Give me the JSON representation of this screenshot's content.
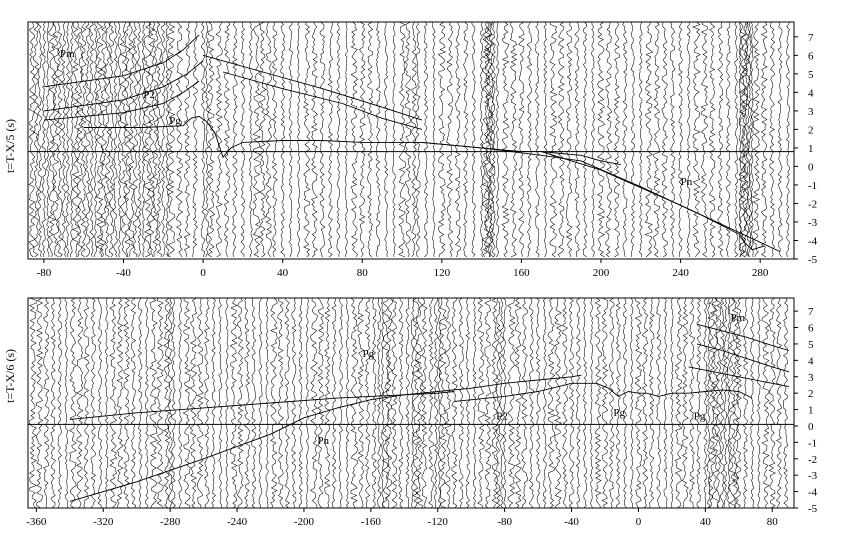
{
  "chart_data": [
    {
      "type": "line",
      "panel": "upper",
      "ylabel": "t=T-X/5 (s)",
      "xlim": [
        -88,
        297
      ],
      "ylim": [
        -5,
        7.8
      ],
      "xticks": [
        -80,
        -40,
        0,
        40,
        80,
        120,
        160,
        200,
        240,
        280
      ],
      "xtick_labels": [
        "-80",
        "-40",
        "0",
        "40",
        "80",
        "120",
        "160",
        "200",
        "240",
        "280"
      ],
      "yticks": [
        -5,
        -4,
        -3,
        -2,
        -1,
        0,
        1,
        2,
        3,
        4,
        5,
        6,
        7
      ],
      "ytick_labels": [
        "-5",
        "-4",
        "-3",
        "-2",
        "-1",
        "0",
        "1",
        "2",
        "3",
        "4",
        "5",
        "6",
        "7"
      ],
      "reference_line_y": 0.8,
      "trace_x": [
        -86,
        -84,
        -82,
        -80,
        -78,
        -76,
        -74,
        -72,
        -70,
        -68,
        -66,
        -64,
        -62,
        -60,
        -58,
        -56,
        -54,
        -52,
        -50,
        -48,
        -46,
        -44,
        -42,
        -40,
        -38,
        -36,
        -34,
        -32,
        -30,
        -28,
        -26,
        -24,
        -22,
        -20,
        -18,
        -16,
        -12,
        -8,
        -4,
        0,
        2,
        4,
        8,
        12,
        16,
        20,
        24,
        27,
        30,
        33,
        36,
        40,
        44,
        48,
        52,
        56,
        60,
        64,
        68,
        72,
        76,
        80,
        84,
        88,
        92,
        96,
        100,
        103,
        106,
        108,
        112,
        116,
        120,
        124,
        128,
        132,
        136,
        140,
        142,
        143,
        144,
        145,
        146,
        148,
        152,
        156,
        160,
        164,
        168,
        172,
        176,
        180,
        184,
        188,
        192,
        196,
        200,
        204,
        208,
        212,
        216,
        220,
        224,
        228,
        232,
        236,
        240,
        244,
        248,
        252,
        256,
        260,
        264,
        268,
        270,
        271,
        272,
        273,
        274,
        275,
        276,
        278,
        282,
        286,
        290,
        294
      ],
      "phase_labels": [
        {
          "text": "Pm",
          "x": -72,
          "y": 5.9
        },
        {
          "text": "P2",
          "x": -30,
          "y": 3.7
        },
        {
          "text": "Pg",
          "x": -17,
          "y": 2.3
        },
        {
          "text": "Pn",
          "x": 240,
          "y": -1.0
        }
      ],
      "series": [
        {
          "name": "Pm",
          "x": [
            -80,
            -40,
            -20,
            -10,
            -2
          ],
          "y": [
            4.3,
            4.9,
            5.6,
            6.3,
            7.1
          ]
        },
        {
          "name": "",
          "x": [
            -80,
            -40,
            -20,
            -8,
            0
          ],
          "y": [
            3.0,
            3.6,
            4.3,
            5.0,
            5.7
          ]
        },
        {
          "name": "P2",
          "x": [
            -80,
            -40,
            -20,
            -10,
            -2
          ],
          "y": [
            2.5,
            2.9,
            3.4,
            4.0,
            4.6
          ]
        },
        {
          "name": "",
          "x": [
            0,
            30,
            60,
            90,
            110
          ],
          "y": [
            6.0,
            5.1,
            4.2,
            3.2,
            2.5
          ]
        },
        {
          "name": "",
          "x": [
            10,
            40,
            70,
            90,
            110
          ],
          "y": [
            5.1,
            4.2,
            3.4,
            2.6,
            2.0
          ]
        },
        {
          "name": "Pg",
          "x": [
            -60,
            -30,
            -10,
            -6,
            -2,
            2,
            6,
            10,
            14,
            20,
            40,
            60,
            80,
            100,
            110,
            130,
            150,
            160,
            170,
            180,
            190,
            200,
            210
          ],
          "y": [
            2.1,
            2.1,
            2.2,
            2.6,
            2.7,
            2.4,
            1.8,
            0.5,
            1.0,
            1.3,
            1.4,
            1.4,
            1.3,
            1.3,
            1.3,
            1.1,
            0.9,
            0.8,
            0.8,
            0.7,
            0.6,
            0.3,
            0.1
          ]
        },
        {
          "name": "Pn",
          "x": [
            110,
            140,
            170,
            190,
            220,
            250,
            270,
            272,
            276,
            282
          ],
          "y": [
            1.3,
            1.0,
            0.6,
            0.3,
            -1.1,
            -2.6,
            -3.7,
            -4.1,
            -4.5,
            -4.3
          ]
        },
        {
          "name": "",
          "x": [
            170,
            200,
            240,
            280,
            290
          ],
          "y": [
            0.8,
            -0.2,
            -2.1,
            -4.1,
            -4.6
          ]
        }
      ]
    },
    {
      "type": "line",
      "panel": "lower",
      "ylabel": "t=T-X/6 (s)",
      "xlim": [
        -365,
        93
      ],
      "ylim": [
        -5,
        7.8
      ],
      "xticks": [
        -360,
        -320,
        -280,
        -240,
        -200,
        -160,
        -120,
        -80,
        -40,
        0,
        40,
        80
      ],
      "xtick_labels": [
        "-360",
        "-320",
        "-280",
        "-240",
        "-200",
        "-160",
        "-120",
        "-80",
        "-40",
        "0",
        "40",
        "80"
      ],
      "yticks": [
        -5,
        -4,
        -3,
        -2,
        -1,
        0,
        1,
        2,
        3,
        4,
        5,
        6,
        7
      ],
      "ytick_labels": [
        "-5",
        "-4",
        "-3",
        "-2",
        "-1",
        "0",
        "1",
        "2",
        "3",
        "4",
        "5",
        "6",
        "7"
      ],
      "reference_line_y": 0.1,
      "trace_x": [
        -362,
        -358,
        -354,
        -350,
        -346,
        -342,
        -338,
        -334,
        -330,
        -326,
        -322,
        -318,
        -314,
        -310,
        -306,
        -302,
        -298,
        -294,
        -290,
        -286,
        -282,
        -280,
        -278,
        -274,
        -270,
        -266,
        -262,
        -258,
        -254,
        -250,
        -246,
        -242,
        -238,
        -234,
        -230,
        -226,
        -222,
        -218,
        -214,
        -210,
        -206,
        -202,
        -198,
        -194,
        -190,
        -186,
        -182,
        -178,
        -174,
        -170,
        -166,
        -162,
        -158,
        -155,
        -153,
        -151,
        -149,
        -146,
        -142,
        -138,
        -135,
        -133,
        -131,
        -128,
        -124,
        -121,
        -119,
        -117,
        -114,
        -110,
        -106,
        -102,
        -98,
        -94,
        -90,
        -86,
        -84,
        -82,
        -80,
        -76,
        -72,
        -68,
        -64,
        -60,
        -56,
        -52,
        -48,
        -44,
        -40,
        -36,
        -32,
        -28,
        -24,
        -20,
        -16,
        -12,
        -8,
        -4,
        0,
        4,
        8,
        12,
        16,
        20,
        24,
        28,
        32,
        36,
        40,
        42,
        44,
        46,
        48,
        50,
        52,
        54,
        56,
        58,
        60,
        64,
        68,
        72,
        76,
        80,
        84,
        88
      ],
      "phase_labels": [
        {
          "text": "Pm",
          "x": 55,
          "y": 6.4
        },
        {
          "text": "Pg",
          "x": -165,
          "y": 4.2
        },
        {
          "text": "P2",
          "x": -85,
          "y": 0.4
        },
        {
          "text": "Pg",
          "x": -15,
          "y": 0.6
        },
        {
          "text": "Pg",
          "x": 33,
          "y": 0.4
        },
        {
          "text": "Pn",
          "x": -192,
          "y": -1.1
        }
      ],
      "series": [
        {
          "name": "Pn",
          "x": [
            -340,
            -300,
            -260,
            -220,
            -200,
            -180,
            -160,
            -140,
            -120,
            -100,
            -80,
            -60,
            -40,
            -34
          ],
          "y": [
            -4.6,
            -3.4,
            -2.0,
            -0.5,
            0.5,
            1.1,
            1.6,
            1.9,
            2.1,
            2.3,
            2.6,
            2.8,
            3.0,
            3.1
          ]
        },
        {
          "name": "",
          "x": [
            -340,
            -300,
            -260,
            -220,
            -180,
            -160,
            -140,
            -120,
            -110
          ],
          "y": [
            0.4,
            0.8,
            1.1,
            1.4,
            1.7,
            1.8,
            1.9,
            2.0,
            2.1
          ]
        },
        {
          "name": "Pg",
          "x": [
            -110,
            -80,
            -60,
            -40,
            -25,
            -18,
            -12,
            -6,
            0,
            5,
            12,
            20,
            30,
            40,
            50,
            60,
            68
          ],
          "y": [
            1.5,
            1.8,
            2.1,
            2.6,
            2.6,
            2.3,
            1.8,
            2.1,
            2.0,
            2.0,
            1.8,
            2.0,
            2.0,
            2.1,
            2.2,
            2.1,
            1.7
          ]
        },
        {
          "name": "Pm",
          "x": [
            35,
            50,
            65,
            80,
            90
          ],
          "y": [
            6.2,
            5.8,
            5.4,
            4.9,
            4.6
          ]
        },
        {
          "name": "",
          "x": [
            35,
            50,
            65,
            80,
            90
          ],
          "y": [
            5.0,
            4.6,
            4.1,
            3.6,
            3.3
          ]
        },
        {
          "name": "",
          "x": [
            30,
            45,
            60,
            75,
            90
          ],
          "y": [
            3.6,
            3.3,
            3.0,
            2.7,
            2.4
          ]
        }
      ]
    }
  ]
}
